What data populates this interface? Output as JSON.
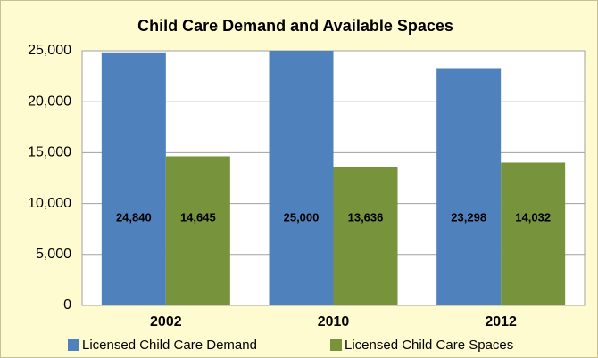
{
  "chart_data": {
    "type": "bar",
    "title": "Child Care Demand and Available Spaces",
    "categories": [
      "2002",
      "2010",
      "2012"
    ],
    "series": [
      {
        "name": "Licensed Child Care Demand",
        "color": "#4f81bd",
        "values": [
          24840,
          25000,
          23298
        ],
        "value_labels": [
          "24,840",
          "25,000",
          "23,298"
        ]
      },
      {
        "name": "Licensed Child Care Spaces",
        "color": "#77933c",
        "values": [
          14645,
          13636,
          14032
        ],
        "value_labels": [
          "14,645",
          "13,636",
          "14,032"
        ]
      }
    ],
    "ylim": [
      0,
      25000
    ],
    "yticks": [
      0,
      {
        "value": 5000,
        "label": "5,000"
      },
      {
        "value": 10000,
        "label": "10,000"
      },
      {
        "value": 15000,
        "label": "15,000"
      },
      {
        "value": 20000,
        "label": "20,000"
      },
      {
        "value": 25000,
        "label": "25,000"
      }
    ],
    "grid": true,
    "legend": "bottom"
  }
}
